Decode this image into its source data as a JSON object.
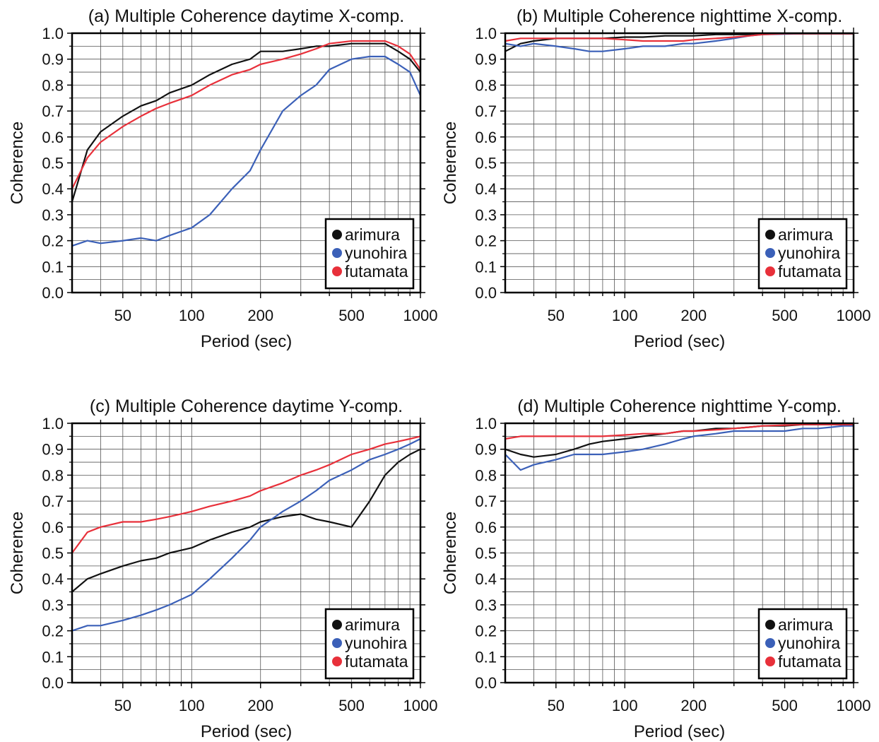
{
  "chart_data": [
    {
      "type": "line",
      "title": "(a) Multiple Coherence daytime X-comp.",
      "xlabel": "Period (sec)",
      "ylabel": "Coherence",
      "x_scale": "log",
      "xlim": [
        30,
        1000
      ],
      "ylim": [
        0.0,
        1.0
      ],
      "x_ticks": [
        "50",
        "100",
        "200",
        "500",
        "1000"
      ],
      "y_ticks": [
        "0.0",
        "0.1",
        "0.2",
        "0.3",
        "0.4",
        "0.5",
        "0.6",
        "0.7",
        "0.8",
        "0.9",
        "1.0"
      ],
      "grid": true,
      "legend": "bottom-right",
      "series": [
        {
          "name": "arimura",
          "color": "#111111",
          "x": [
            30,
            35,
            40,
            50,
            60,
            70,
            80,
            100,
            120,
            150,
            180,
            200,
            250,
            300,
            350,
            400,
            500,
            600,
            700,
            800,
            900,
            1000
          ],
          "values": [
            0.35,
            0.55,
            0.62,
            0.68,
            0.72,
            0.74,
            0.77,
            0.8,
            0.84,
            0.88,
            0.9,
            0.93,
            0.93,
            0.94,
            0.95,
            0.95,
            0.96,
            0.96,
            0.96,
            0.93,
            0.9,
            0.85
          ]
        },
        {
          "name": "yunohira",
          "color": "#3b60b8",
          "x": [
            30,
            35,
            40,
            50,
            60,
            70,
            80,
            100,
            120,
            150,
            180,
            200,
            250,
            300,
            350,
            400,
            500,
            600,
            700,
            800,
            900,
            1000
          ],
          "values": [
            0.18,
            0.2,
            0.19,
            0.2,
            0.21,
            0.2,
            0.22,
            0.25,
            0.3,
            0.4,
            0.47,
            0.55,
            0.7,
            0.76,
            0.8,
            0.86,
            0.9,
            0.91,
            0.91,
            0.88,
            0.85,
            0.76
          ]
        },
        {
          "name": "futamata",
          "color": "#e8303a",
          "x": [
            30,
            35,
            40,
            50,
            60,
            70,
            80,
            100,
            120,
            150,
            180,
            200,
            250,
            300,
            350,
            400,
            500,
            600,
            700,
            800,
            900,
            1000
          ],
          "values": [
            0.4,
            0.52,
            0.58,
            0.64,
            0.68,
            0.71,
            0.73,
            0.76,
            0.8,
            0.84,
            0.86,
            0.88,
            0.9,
            0.92,
            0.94,
            0.96,
            0.97,
            0.97,
            0.97,
            0.95,
            0.92,
            0.86
          ]
        }
      ]
    },
    {
      "type": "line",
      "title": "(b) Multiple Coherence nighttime X-comp.",
      "xlabel": "Period (sec)",
      "ylabel": "Coherence",
      "x_scale": "log",
      "xlim": [
        30,
        1000
      ],
      "ylim": [
        0.0,
        1.0
      ],
      "x_ticks": [
        "50",
        "100",
        "200",
        "500",
        "1000"
      ],
      "y_ticks": [
        "0.0",
        "0.1",
        "0.2",
        "0.3",
        "0.4",
        "0.5",
        "0.6",
        "0.7",
        "0.8",
        "0.9",
        "1.0"
      ],
      "grid": true,
      "legend": "bottom-right",
      "series": [
        {
          "name": "arimura",
          "color": "#111111",
          "x": [
            30,
            35,
            40,
            50,
            60,
            70,
            80,
            100,
            120,
            150,
            180,
            200,
            250,
            300,
            350,
            400,
            500,
            600,
            700,
            800,
            900,
            1000
          ],
          "values": [
            0.93,
            0.96,
            0.97,
            0.98,
            0.98,
            0.98,
            0.98,
            0.985,
            0.985,
            0.99,
            0.99,
            0.99,
            0.995,
            0.995,
            0.995,
            0.997,
            0.998,
            0.998,
            0.998,
            0.998,
            0.998,
            0.998
          ]
        },
        {
          "name": "yunohira",
          "color": "#3b60b8",
          "x": [
            30,
            35,
            40,
            50,
            60,
            70,
            80,
            100,
            120,
            150,
            180,
            200,
            250,
            300,
            350,
            400,
            500,
            600,
            700,
            800,
            900,
            1000
          ],
          "values": [
            0.96,
            0.95,
            0.96,
            0.95,
            0.94,
            0.93,
            0.93,
            0.94,
            0.95,
            0.95,
            0.96,
            0.96,
            0.97,
            0.98,
            0.99,
            0.995,
            0.997,
            0.998,
            0.998,
            0.998,
            0.998,
            0.998
          ]
        },
        {
          "name": "futamata",
          "color": "#e8303a",
          "x": [
            30,
            35,
            40,
            50,
            60,
            70,
            80,
            100,
            120,
            150,
            180,
            200,
            250,
            300,
            350,
            400,
            500,
            600,
            700,
            800,
            900,
            1000
          ],
          "values": [
            0.97,
            0.98,
            0.98,
            0.98,
            0.98,
            0.98,
            0.98,
            0.975,
            0.97,
            0.97,
            0.97,
            0.975,
            0.98,
            0.985,
            0.99,
            0.995,
            0.998,
            0.998,
            0.998,
            0.998,
            0.998,
            0.998
          ]
        }
      ]
    },
    {
      "type": "line",
      "title": "(c) Multiple Coherence daytime Y-comp.",
      "xlabel": "Period (sec)",
      "ylabel": "Coherence",
      "x_scale": "log",
      "xlim": [
        30,
        1000
      ],
      "ylim": [
        0.0,
        1.0
      ],
      "x_ticks": [
        "50",
        "100",
        "200",
        "500",
        "1000"
      ],
      "y_ticks": [
        "0.0",
        "0.1",
        "0.2",
        "0.3",
        "0.4",
        "0.5",
        "0.6",
        "0.7",
        "0.8",
        "0.9",
        "1.0"
      ],
      "grid": true,
      "legend": "bottom-right",
      "series": [
        {
          "name": "arimura",
          "color": "#111111",
          "x": [
            30,
            35,
            40,
            50,
            60,
            70,
            80,
            100,
            120,
            150,
            180,
            200,
            250,
            300,
            350,
            400,
            500,
            600,
            700,
            800,
            900,
            1000
          ],
          "values": [
            0.35,
            0.4,
            0.42,
            0.45,
            0.47,
            0.48,
            0.5,
            0.52,
            0.55,
            0.58,
            0.6,
            0.62,
            0.64,
            0.65,
            0.63,
            0.62,
            0.6,
            0.7,
            0.8,
            0.85,
            0.88,
            0.9
          ]
        },
        {
          "name": "yunohira",
          "color": "#3b60b8",
          "x": [
            30,
            35,
            40,
            50,
            60,
            70,
            80,
            100,
            120,
            150,
            180,
            200,
            250,
            300,
            350,
            400,
            500,
            600,
            700,
            800,
            900,
            1000
          ],
          "values": [
            0.2,
            0.22,
            0.22,
            0.24,
            0.26,
            0.28,
            0.3,
            0.34,
            0.4,
            0.48,
            0.55,
            0.6,
            0.66,
            0.7,
            0.74,
            0.78,
            0.82,
            0.86,
            0.88,
            0.9,
            0.92,
            0.94
          ]
        },
        {
          "name": "futamata",
          "color": "#e8303a",
          "x": [
            30,
            35,
            40,
            50,
            60,
            70,
            80,
            100,
            120,
            150,
            180,
            200,
            250,
            300,
            350,
            400,
            500,
            600,
            700,
            800,
            900,
            1000
          ],
          "values": [
            0.5,
            0.58,
            0.6,
            0.62,
            0.62,
            0.63,
            0.64,
            0.66,
            0.68,
            0.7,
            0.72,
            0.74,
            0.77,
            0.8,
            0.82,
            0.84,
            0.88,
            0.9,
            0.92,
            0.93,
            0.94,
            0.95
          ]
        }
      ]
    },
    {
      "type": "line",
      "title": "(d) Multiple Coherence nighttime Y-comp.",
      "xlabel": "Period (sec)",
      "ylabel": "Coherence",
      "x_scale": "log",
      "xlim": [
        30,
        1000
      ],
      "ylim": [
        0.0,
        1.0
      ],
      "x_ticks": [
        "50",
        "100",
        "200",
        "500",
        "1000"
      ],
      "y_ticks": [
        "0.0",
        "0.1",
        "0.2",
        "0.3",
        "0.4",
        "0.5",
        "0.6",
        "0.7",
        "0.8",
        "0.9",
        "1.0"
      ],
      "grid": true,
      "legend": "bottom-right",
      "series": [
        {
          "name": "arimura",
          "color": "#111111",
          "x": [
            30,
            35,
            40,
            50,
            60,
            70,
            80,
            100,
            120,
            150,
            180,
            200,
            250,
            300,
            350,
            400,
            500,
            600,
            700,
            800,
            900,
            1000
          ],
          "values": [
            0.9,
            0.88,
            0.87,
            0.88,
            0.9,
            0.92,
            0.93,
            0.94,
            0.95,
            0.96,
            0.97,
            0.97,
            0.98,
            0.98,
            0.985,
            0.99,
            0.99,
            0.995,
            0.995,
            0.995,
            0.995,
            0.995
          ]
        },
        {
          "name": "yunohira",
          "color": "#3b60b8",
          "x": [
            30,
            35,
            40,
            50,
            60,
            70,
            80,
            100,
            120,
            150,
            180,
            200,
            250,
            300,
            350,
            400,
            500,
            600,
            700,
            800,
            900,
            1000
          ],
          "values": [
            0.88,
            0.82,
            0.84,
            0.86,
            0.88,
            0.88,
            0.88,
            0.89,
            0.9,
            0.92,
            0.94,
            0.95,
            0.96,
            0.97,
            0.97,
            0.97,
            0.97,
            0.98,
            0.98,
            0.985,
            0.99,
            0.99
          ]
        },
        {
          "name": "futamata",
          "color": "#e8303a",
          "x": [
            30,
            35,
            40,
            50,
            60,
            70,
            80,
            100,
            120,
            150,
            180,
            200,
            250,
            300,
            350,
            400,
            500,
            600,
            700,
            800,
            900,
            1000
          ],
          "values": [
            0.94,
            0.95,
            0.95,
            0.95,
            0.95,
            0.95,
            0.95,
            0.955,
            0.96,
            0.96,
            0.97,
            0.97,
            0.975,
            0.98,
            0.985,
            0.99,
            0.993,
            0.995,
            0.995,
            0.995,
            0.995,
            0.995
          ]
        }
      ]
    }
  ]
}
